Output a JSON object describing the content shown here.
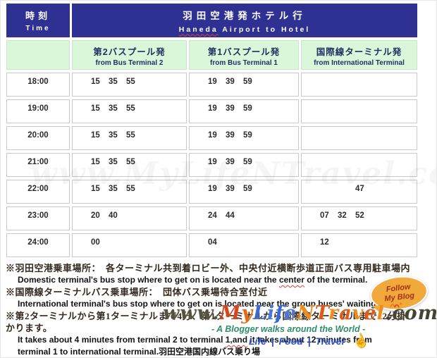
{
  "colors": {
    "header_navy": "#2E3192",
    "subheader_green": "#DAF7DA",
    "subheader_text_navy": "#1F2F5F",
    "badge_orange": "#F2A93B",
    "badge_text": "#9E3314",
    "tagline_teal": "#2F8C6A",
    "tagline_blue": "#2B50C8",
    "spellcheck_red": "#E03C31",
    "cell_border_gray": "#C9C9C9"
  },
  "header": {
    "time_jp": "時刻",
    "time_en": "Time",
    "title_jp": "羽田空港発ホテル行",
    "title_en_word1": "Haneda",
    "title_en_rest": " Airport to Hotel"
  },
  "columns": [
    {
      "jp": "第2バスプール発",
      "en": "from Bus Terminal 2"
    },
    {
      "jp": "第1バスプール発",
      "en": "from Bus Terminal 1"
    },
    {
      "jp": "国際線ターミナル発",
      "en": "from International Terminal"
    }
  ],
  "rows": [
    {
      "time": "18:00",
      "cells": [
        [
          "15",
          "35",
          "55"
        ],
        [
          "19",
          "39",
          "59"
        ],
        [
          "",
          "",
          ""
        ]
      ]
    },
    {
      "time": "19:00",
      "cells": [
        [
          "15",
          "35",
          "55"
        ],
        [
          "19",
          "39",
          "59"
        ],
        [
          "",
          "",
          ""
        ]
      ]
    },
    {
      "time": "20:00",
      "cells": [
        [
          "15",
          "35",
          "55"
        ],
        [
          "19",
          "39",
          "59"
        ],
        [
          "",
          "",
          ""
        ]
      ]
    },
    {
      "time": "21:00",
      "cells": [
        [
          "15",
          "35",
          "55"
        ],
        [
          "19",
          "39",
          "59"
        ],
        [
          "",
          "",
          ""
        ]
      ]
    },
    {
      "time": "22:00",
      "cells": [
        [
          "15",
          "35",
          "55"
        ],
        [
          "19",
          "39",
          "59"
        ],
        [
          "",
          "",
          "47"
        ]
      ]
    },
    {
      "time": "23:00",
      "cells": [
        [
          "20",
          "40",
          ""
        ],
        [
          "24",
          "44",
          ""
        ],
        [
          "07",
          "32",
          "52"
        ]
      ]
    },
    {
      "time": "24:00",
      "cells": [
        [
          "00",
          "",
          ""
        ],
        [
          "04",
          "",
          ""
        ],
        [
          "12",
          "",
          ""
        ]
      ]
    }
  ],
  "notes": {
    "line1_jp": "※羽田空港乗車場所：　各ターミナル共到着ロビー外、中央付近横断歩道正面バス専用駐車場内",
    "line2_pre": "Domestic terminal's bus stop where to get on is located near the ",
    "line2_wavy": "center",
    "line2_post": " of the terminal.",
    "line3_jp": "※国際線ターミナルバス乗車場所：　団体バス乗場待合室付近",
    "line4_en": "International terminal's bus stop where to get on is located near the group buses' waiting room.",
    "line5_jp": "※第2ターミナルから第1ターミナルまで4分、第1ターミナルから国際線ターミナルまで12分掛",
    "line6_jp": "かります。",
    "line7_pre": "It takes about 4 minutes from terminal 2 to terminal ",
    "line7_wavy": "1,and",
    "line7_post": " it takes about 12 minutes from",
    "line8_en": "terminal 1 to international terminal.羽田空港国内線バス乗り場"
  },
  "follow_badge": {
    "line1": "Follow",
    "line2": "My Blog"
  },
  "watermark": {
    "segments": [
      {
        "t": "www.",
        "c": "#55553F"
      },
      {
        "t": "M",
        "c": "#D6451C"
      },
      {
        "t": "y",
        "c": "#E86A10"
      },
      {
        "t": "L",
        "c": "#3C68D4"
      },
      {
        "t": "i",
        "c": "#4A77DD"
      },
      {
        "t": "f",
        "c": "#3C68D4"
      },
      {
        "t": "e",
        "c": "#4A77DD"
      },
      {
        "t": "N",
        "c": "#F08C1E"
      },
      {
        "t": "T",
        "c": "#E25A17"
      },
      {
        "t": "r",
        "c": "#F08C1E"
      },
      {
        "t": "a",
        "c": "#E25A17"
      },
      {
        "t": "v",
        "c": "#F08C1E"
      },
      {
        "t": "e",
        "c": "#E25A17"
      },
      {
        "t": "l",
        "c": "#F08C1E"
      },
      {
        "t": ".com",
        "c": "#44442F"
      }
    ],
    "tagline1": "-  A  Blogger  walks  around  the  World  -",
    "tagline2": "Life | Food | Travel"
  },
  "ghost_watermark": "www.MyLifeNTravel.com"
}
